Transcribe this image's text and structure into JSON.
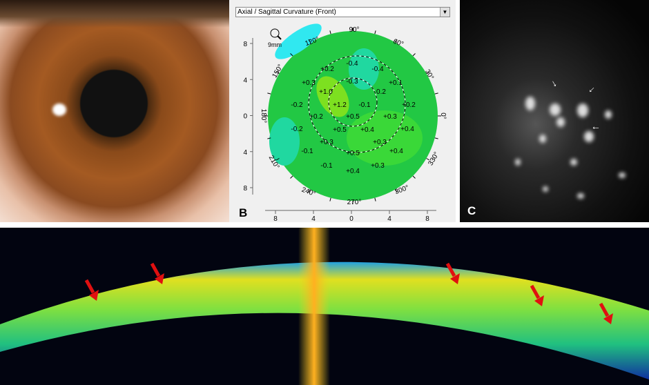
{
  "panel_b": {
    "label": "B",
    "dropdown": "Axial / Sagittal Curvature (Front)",
    "zoom_label": "9mm",
    "y_axis_ticks": [
      "8",
      "4",
      "0",
      "4",
      "8"
    ],
    "x_axis_ticks": [
      "8",
      "4",
      "0",
      "4",
      "8"
    ],
    "angle_labels": [
      "90°",
      "60°",
      "30°",
      "0°",
      "330°",
      "300°",
      "270°",
      "240°",
      "210°",
      "180°",
      "150°",
      "120°"
    ],
    "values": [
      "-0.4",
      "-0.4",
      "+0.2",
      "+0.3",
      "-0.3",
      "+0.1",
      "+1.0",
      "0.2",
      "-0.2",
      "+1.2",
      "-0.1",
      "+0.2",
      "+0.2",
      "+0.5",
      "+0.3",
      "-0.2",
      "+0.5",
      "+0.4",
      "+0.4",
      "+0.3",
      "+0.3",
      "-0.1",
      "+0.5",
      "+0.4",
      "-0.1",
      "+0.4",
      "+0.3"
    ],
    "colors": {
      "base": "#22c844",
      "high": "#7de020",
      "low": "#20d8a0",
      "lowest": "#30e8f0"
    }
  },
  "panel_c": {
    "label": "C",
    "arrow_count": 3
  },
  "panel_d": {
    "arrow_color": "#e01010",
    "arrow_count": 5
  }
}
